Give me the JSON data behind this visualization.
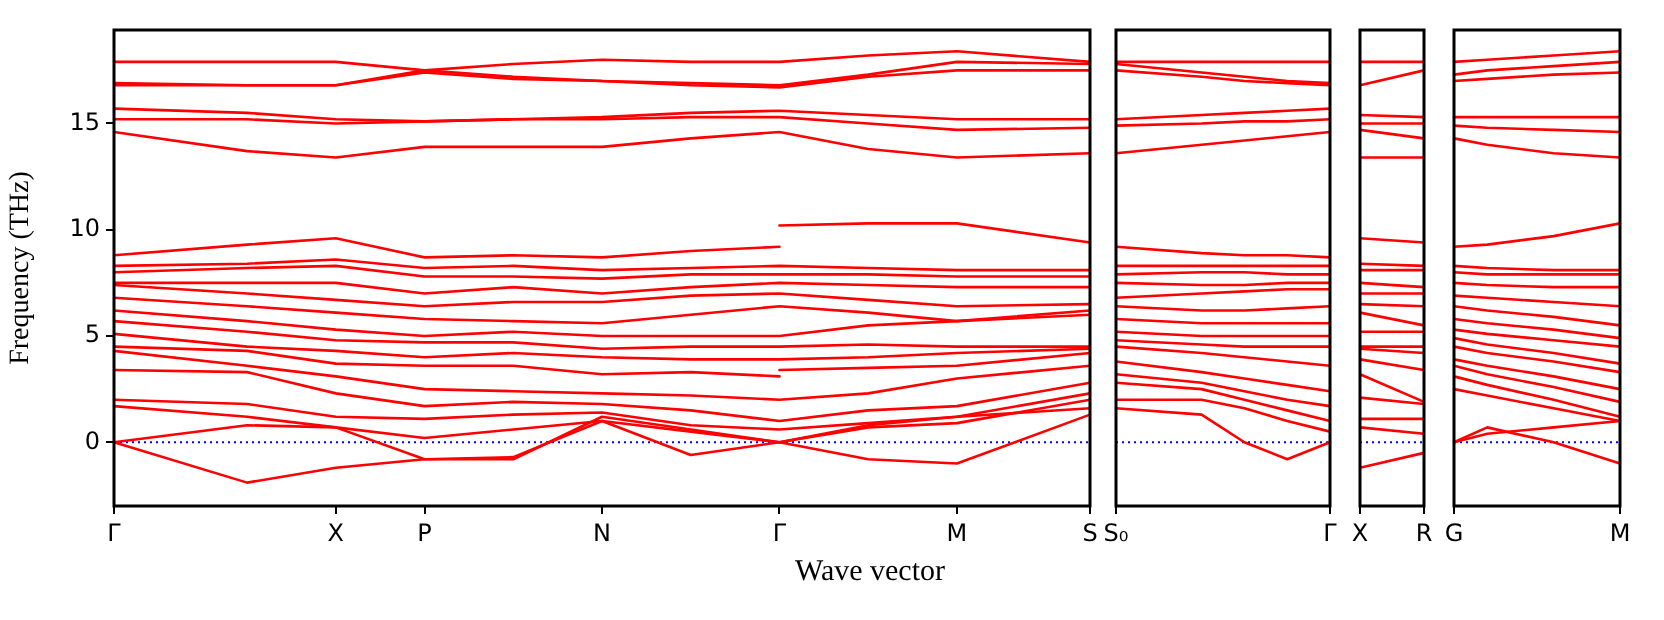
{
  "chart_data": [
    {
      "type": "line",
      "xlabel": "Wave vector",
      "ylabel": "Frequency (THz)",
      "ylim": [
        -3,
        19.4
      ],
      "yticks": [
        0,
        5,
        10,
        15
      ],
      "categories": [
        "Γ",
        null,
        null,
        null,
        null,
        "X",
        null,
        "P",
        null,
        null,
        null,
        "N",
        null,
        null,
        null,
        "Γ",
        null,
        null,
        null,
        "M",
        null,
        null,
        "S"
      ],
      "grid": false,
      "legend": false,
      "marker": "none",
      "line_style": "solid",
      "ref_lines": [
        {
          "axis": "y",
          "value": 0,
          "color": "#0000ff",
          "line_style": "dotted"
        }
      ],
      "series": [
        {
          "color": "#ff0000",
          "values": [
            17.9,
            null,
            null,
            17.9,
            null,
            17.9,
            null,
            17.5,
            null,
            17.8,
            null,
            18.0,
            null,
            17.9,
            null,
            17.9,
            null,
            18.2,
            null,
            18.4,
            null,
            null,
            17.9
          ]
        },
        {
          "color": "#ff0000",
          "values": [
            16.9,
            null,
            null,
            16.8,
            null,
            16.8,
            null,
            17.5,
            null,
            17.2,
            null,
            17.0,
            null,
            16.9,
            null,
            16.8,
            null,
            17.3,
            null,
            17.9,
            null,
            null,
            17.8
          ]
        },
        {
          "color": "#ff0000",
          "values": [
            16.8,
            null,
            null,
            16.8,
            null,
            16.8,
            null,
            17.4,
            null,
            17.1,
            null,
            17.0,
            null,
            16.8,
            null,
            16.7,
            null,
            17.2,
            null,
            17.5,
            null,
            null,
            17.5
          ]
        },
        {
          "color": "#ff0000",
          "values": [
            15.7,
            null,
            null,
            15.5,
            null,
            15.2,
            null,
            15.1,
            null,
            15.2,
            null,
            15.3,
            null,
            15.5,
            null,
            15.6,
            null,
            15.4,
            null,
            15.2,
            null,
            null,
            15.2
          ]
        },
        {
          "color": "#ff0000",
          "values": [
            15.2,
            null,
            null,
            15.2,
            null,
            15.0,
            null,
            15.1,
            null,
            15.2,
            null,
            15.2,
            null,
            15.3,
            null,
            15.3,
            null,
            15.0,
            null,
            14.7,
            null,
            null,
            14.8
          ]
        },
        {
          "color": "#ff0000",
          "values": [
            14.6,
            null,
            null,
            13.7,
            null,
            13.4,
            null,
            13.9,
            null,
            13.9,
            null,
            13.9,
            null,
            14.3,
            null,
            14.6,
            null,
            13.8,
            null,
            13.4,
            null,
            null,
            13.6
          ]
        },
        {
          "color": "#ff0000",
          "values": [
            8.8,
            null,
            null,
            9.3,
            null,
            9.6,
            null,
            8.7,
            null,
            8.8,
            null,
            8.7,
            null,
            9.0,
            null,
            9.2,
            null,
            null,
            null,
            null,
            null,
            null,
            null
          ]
        },
        {
          "color": "#ff0000",
          "values": [
            null,
            null,
            null,
            null,
            null,
            null,
            null,
            null,
            null,
            null,
            null,
            null,
            null,
            null,
            null,
            10.2,
            null,
            10.3,
            null,
            10.3,
            null,
            null,
            9.4
          ]
        },
        {
          "color": "#ff0000",
          "values": [
            8.3,
            null,
            null,
            8.4,
            null,
            8.6,
            null,
            8.2,
            null,
            8.3,
            null,
            8.1,
            null,
            8.2,
            null,
            8.3,
            null,
            8.2,
            null,
            8.1,
            null,
            null,
            8.1
          ]
        },
        {
          "color": "#ff0000",
          "values": [
            8.0,
            null,
            null,
            8.2,
            null,
            8.3,
            null,
            7.8,
            null,
            7.8,
            null,
            7.7,
            null,
            7.9,
            null,
            7.9,
            null,
            7.9,
            null,
            7.8,
            null,
            null,
            7.8
          ]
        },
        {
          "color": "#ff0000",
          "values": [
            7.5,
            null,
            null,
            7.5,
            null,
            7.5,
            null,
            7.0,
            null,
            7.3,
            null,
            7.0,
            null,
            7.3,
            null,
            7.5,
            null,
            7.4,
            null,
            7.3,
            null,
            null,
            7.3
          ]
        },
        {
          "color": "#ff0000",
          "values": [
            7.4,
            null,
            null,
            7.0,
            null,
            6.7,
            null,
            6.4,
            null,
            6.6,
            null,
            6.6,
            null,
            6.9,
            null,
            7.0,
            null,
            6.7,
            null,
            6.4,
            null,
            null,
            6.5
          ]
        },
        {
          "color": "#ff0000",
          "values": [
            6.8,
            null,
            null,
            6.4,
            null,
            6.1,
            null,
            5.8,
            null,
            5.7,
            null,
            5.6,
            null,
            6.0,
            null,
            6.4,
            null,
            6.1,
            null,
            5.7,
            null,
            null,
            6.2
          ]
        },
        {
          "color": "#ff0000",
          "values": [
            6.2,
            null,
            null,
            5.7,
            null,
            5.3,
            null,
            5.0,
            null,
            5.2,
            null,
            5.0,
            null,
            5.0,
            null,
            5.0,
            null,
            5.5,
            null,
            5.7,
            null,
            null,
            6.0
          ]
        },
        {
          "color": "#ff0000",
          "values": [
            5.7,
            null,
            null,
            5.2,
            null,
            4.8,
            null,
            4.7,
            null,
            4.7,
            null,
            4.4,
            null,
            4.5,
            null,
            4.5,
            null,
            4.6,
            null,
            4.5,
            null,
            null,
            4.5
          ]
        },
        {
          "color": "#ff0000",
          "values": [
            5.1,
            null,
            null,
            4.5,
            null,
            4.3,
            null,
            4.0,
            null,
            4.2,
            null,
            4.0,
            null,
            3.9,
            null,
            3.9,
            null,
            4.0,
            null,
            4.2,
            null,
            null,
            4.4
          ]
        },
        {
          "color": "#ff0000",
          "values": [
            4.5,
            null,
            null,
            4.3,
            null,
            3.7,
            null,
            3.6,
            null,
            3.6,
            null,
            3.2,
            null,
            3.3,
            null,
            3.1,
            null,
            null,
            null,
            null,
            null,
            null,
            null
          ]
        },
        {
          "color": "#ff0000",
          "values": [
            null,
            null,
            null,
            null,
            null,
            null,
            null,
            null,
            null,
            null,
            null,
            null,
            null,
            null,
            null,
            3.4,
            null,
            3.5,
            null,
            3.6,
            null,
            null,
            4.2
          ]
        },
        {
          "color": "#ff0000",
          "values": [
            4.3,
            null,
            null,
            3.6,
            null,
            3.1,
            null,
            2.5,
            null,
            2.4,
            null,
            2.3,
            null,
            2.2,
            null,
            2.0,
            null,
            2.3,
            null,
            3.0,
            null,
            null,
            3.6
          ]
        },
        {
          "color": "#ff0000",
          "values": [
            3.4,
            null,
            null,
            3.3,
            null,
            2.3,
            null,
            1.7,
            null,
            1.9,
            null,
            1.8,
            null,
            1.5,
            null,
            1.0,
            null,
            1.5,
            null,
            1.7,
            null,
            null,
            2.8
          ]
        },
        {
          "color": "#ff0000",
          "values": [
            2.0,
            null,
            null,
            1.8,
            null,
            1.2,
            null,
            1.1,
            null,
            1.3,
            null,
            1.4,
            null,
            0.8,
            null,
            0.6,
            null,
            0.9,
            null,
            1.2,
            null,
            null,
            2.3
          ]
        },
        {
          "color": "#ff0000",
          "values": [
            1.7,
            null,
            null,
            1.2,
            null,
            0.7,
            null,
            0.2,
            null,
            0.6,
            null,
            1.0,
            null,
            0.5,
            null,
            0.0,
            null,
            0.7,
            null,
            0.9,
            null,
            null,
            2.0
          ]
        },
        {
          "color": "#ff0000",
          "values": [
            0.0,
            null,
            null,
            0.8,
            null,
            0.7,
            null,
            -0.8,
            null,
            -0.7,
            null,
            1.0,
            null,
            -0.6,
            null,
            0.0,
            null,
            -0.8,
            null,
            -1.0,
            null,
            null,
            1.3
          ]
        },
        {
          "color": "#ff0000",
          "values": [
            0.0,
            null,
            null,
            -1.9,
            null,
            -1.2,
            null,
            -0.8,
            null,
            -0.8,
            null,
            1.2,
            null,
            0.6,
            null,
            0.0,
            null,
            0.8,
            null,
            1.2,
            null,
            null,
            1.6
          ]
        }
      ]
    },
    {
      "type": "line",
      "ylim": [
        -3,
        19.4
      ],
      "yticks": [
        0,
        5,
        10,
        15
      ],
      "tick_labels": "x",
      "categories": [
        "S₀",
        null,
        null,
        null,
        null,
        "Γ"
      ],
      "grid": false,
      "legend": false,
      "marker": "none",
      "line_style": "solid",
      "ref_lines": [
        {
          "axis": "y",
          "value": 0,
          "color": "#0000ff",
          "line_style": "dotted"
        }
      ],
      "series": [
        {
          "color": "#ff0000",
          "values": [
            17.9,
            null,
            17.9,
            17.9,
            17.9,
            17.9
          ]
        },
        {
          "color": "#ff0000",
          "values": [
            17.8,
            null,
            17.4,
            17.2,
            17.0,
            16.9
          ]
        },
        {
          "color": "#ff0000",
          "values": [
            17.5,
            null,
            17.2,
            17.0,
            16.9,
            16.8
          ]
        },
        {
          "color": "#ff0000",
          "values": [
            15.2,
            null,
            15.4,
            15.5,
            15.6,
            15.7
          ]
        },
        {
          "color": "#ff0000",
          "values": [
            14.9,
            null,
            15.0,
            15.1,
            15.1,
            15.2
          ]
        },
        {
          "color": "#ff0000",
          "values": [
            13.6,
            null,
            14.0,
            14.2,
            14.4,
            14.6
          ]
        },
        {
          "color": "#ff0000",
          "values": [
            9.2,
            null,
            8.9,
            8.8,
            8.8,
            8.7
          ]
        },
        {
          "color": "#ff0000",
          "values": [
            8.3,
            null,
            8.3,
            8.3,
            8.3,
            8.3
          ]
        },
        {
          "color": "#ff0000",
          "values": [
            7.9,
            null,
            8.0,
            8.0,
            7.9,
            7.9
          ]
        },
        {
          "color": "#ff0000",
          "values": [
            7.5,
            null,
            7.4,
            7.4,
            7.5,
            7.5
          ]
        },
        {
          "color": "#ff0000",
          "values": [
            6.8,
            null,
            7.0,
            7.1,
            7.2,
            7.2
          ]
        },
        {
          "color": "#ff0000",
          "values": [
            6.4,
            null,
            6.2,
            6.2,
            6.3,
            6.4
          ]
        },
        {
          "color": "#ff0000",
          "values": [
            5.8,
            null,
            5.6,
            5.6,
            5.6,
            5.6
          ]
        },
        {
          "color": "#ff0000",
          "values": [
            5.2,
            null,
            5.0,
            5.0,
            5.0,
            5.0
          ]
        },
        {
          "color": "#ff0000",
          "values": [
            4.8,
            null,
            4.6,
            4.5,
            4.5,
            4.5
          ]
        },
        {
          "color": "#ff0000",
          "values": [
            4.5,
            null,
            4.2,
            4.0,
            3.8,
            3.6
          ]
        },
        {
          "color": "#ff0000",
          "values": [
            3.8,
            null,
            3.3,
            3.0,
            2.7,
            2.4
          ]
        },
        {
          "color": "#ff0000",
          "values": [
            3.2,
            null,
            2.8,
            2.4,
            2.0,
            1.7
          ]
        },
        {
          "color": "#ff0000",
          "values": [
            2.8,
            null,
            2.5,
            2.0,
            1.5,
            1.0
          ]
        },
        {
          "color": "#ff0000",
          "values": [
            2.0,
            null,
            2.0,
            1.6,
            1.0,
            0.5
          ]
        },
        {
          "color": "#ff0000",
          "values": [
            1.6,
            null,
            1.3,
            0.0,
            -0.8,
            0.0
          ]
        }
      ]
    },
    {
      "type": "line",
      "ylim": [
        -3,
        19.4
      ],
      "yticks": [
        0,
        5,
        10,
        15
      ],
      "tick_labels": "x",
      "categories": [
        "X",
        "R"
      ],
      "grid": false,
      "legend": false,
      "marker": "none",
      "line_style": "solid",
      "ref_lines": [
        {
          "axis": "y",
          "value": 0,
          "color": "#0000ff",
          "line_style": "dotted"
        }
      ],
      "series": [
        {
          "color": "#ff0000",
          "values": [
            17.9,
            17.9
          ]
        },
        {
          "color": "#ff0000",
          "values": [
            16.8,
            17.5
          ]
        },
        {
          "color": "#ff0000",
          "values": [
            15.4,
            15.3
          ]
        },
        {
          "color": "#ff0000",
          "values": [
            15.0,
            15.0
          ]
        },
        {
          "color": "#ff0000",
          "values": [
            14.7,
            14.3
          ]
        },
        {
          "color": "#ff0000",
          "values": [
            13.4,
            13.4
          ]
        },
        {
          "color": "#ff0000",
          "values": [
            9.6,
            9.4
          ]
        },
        {
          "color": "#ff0000",
          "values": [
            8.4,
            8.3
          ]
        },
        {
          "color": "#ff0000",
          "values": [
            8.1,
            8.1
          ]
        },
        {
          "color": "#ff0000",
          "values": [
            7.5,
            7.3
          ]
        },
        {
          "color": "#ff0000",
          "values": [
            7.0,
            7.0
          ]
        },
        {
          "color": "#ff0000",
          "values": [
            6.5,
            6.4
          ]
        },
        {
          "color": "#ff0000",
          "values": [
            6.1,
            5.5
          ]
        },
        {
          "color": "#ff0000",
          "values": [
            5.2,
            5.2
          ]
        },
        {
          "color": "#ff0000",
          "values": [
            4.5,
            4.5
          ]
        },
        {
          "color": "#ff0000",
          "values": [
            4.4,
            4.2
          ]
        },
        {
          "color": "#ff0000",
          "values": [
            3.9,
            3.4
          ]
        },
        {
          "color": "#ff0000",
          "values": [
            3.2,
            1.9
          ]
        },
        {
          "color": "#ff0000",
          "values": [
            2.1,
            1.8
          ]
        },
        {
          "color": "#ff0000",
          "values": [
            1.1,
            1.1
          ]
        },
        {
          "color": "#ff0000",
          "values": [
            0.7,
            0.4
          ]
        },
        {
          "color": "#ff0000",
          "values": [
            -1.2,
            -0.5
          ]
        }
      ]
    },
    {
      "type": "line",
      "ylim": [
        -3,
        19.4
      ],
      "yticks": [
        0,
        5,
        10,
        15
      ],
      "tick_labels": "x",
      "categories": [
        "G",
        null,
        null,
        null,
        null,
        "M"
      ],
      "grid": false,
      "legend": false,
      "marker": "none",
      "line_style": "solid",
      "ref_lines": [
        {
          "axis": "y",
          "value": 0,
          "color": "#0000ff",
          "line_style": "dotted"
        }
      ],
      "series": [
        {
          "color": "#ff0000",
          "values": [
            17.9,
            18.0,
            null,
            18.2,
            null,
            18.4
          ]
        },
        {
          "color": "#ff0000",
          "values": [
            17.3,
            17.5,
            null,
            17.7,
            null,
            17.9
          ]
        },
        {
          "color": "#ff0000",
          "values": [
            17.0,
            17.1,
            null,
            17.3,
            null,
            17.4
          ]
        },
        {
          "color": "#ff0000",
          "values": [
            15.3,
            15.3,
            null,
            15.3,
            null,
            15.3
          ]
        },
        {
          "color": "#ff0000",
          "values": [
            14.9,
            14.8,
            null,
            14.7,
            null,
            14.6
          ]
        },
        {
          "color": "#ff0000",
          "values": [
            14.3,
            14.0,
            null,
            13.6,
            null,
            13.4
          ]
        },
        {
          "color": "#ff0000",
          "values": [
            9.2,
            9.3,
            null,
            9.7,
            null,
            10.3
          ]
        },
        {
          "color": "#ff0000",
          "values": [
            8.3,
            8.2,
            null,
            8.1,
            null,
            8.1
          ]
        },
        {
          "color": "#ff0000",
          "values": [
            8.0,
            7.9,
            null,
            7.9,
            null,
            7.9
          ]
        },
        {
          "color": "#ff0000",
          "values": [
            7.5,
            7.4,
            null,
            7.3,
            null,
            7.3
          ]
        },
        {
          "color": "#ff0000",
          "values": [
            6.9,
            6.8,
            null,
            6.6,
            null,
            6.4
          ]
        },
        {
          "color": "#ff0000",
          "values": [
            6.4,
            6.2,
            null,
            5.9,
            null,
            5.5
          ]
        },
        {
          "color": "#ff0000",
          "values": [
            5.8,
            5.6,
            null,
            5.3,
            null,
            4.9
          ]
        },
        {
          "color": "#ff0000",
          "values": [
            5.3,
            5.1,
            null,
            4.8,
            null,
            4.5
          ]
        },
        {
          "color": "#ff0000",
          "values": [
            4.9,
            4.6,
            null,
            4.2,
            null,
            3.7
          ]
        },
        {
          "color": "#ff0000",
          "values": [
            4.5,
            4.2,
            null,
            3.8,
            null,
            3.3
          ]
        },
        {
          "color": "#ff0000",
          "values": [
            3.9,
            3.6,
            null,
            3.1,
            null,
            2.5
          ]
        },
        {
          "color": "#ff0000",
          "values": [
            3.6,
            3.2,
            null,
            2.6,
            null,
            1.9
          ]
        },
        {
          "color": "#ff0000",
          "values": [
            3.1,
            2.7,
            null,
            2.0,
            null,
            1.2
          ]
        },
        {
          "color": "#ff0000",
          "values": [
            2.5,
            2.2,
            null,
            1.6,
            null,
            1.0
          ]
        },
        {
          "color": "#ff0000",
          "values": [
            0.0,
            0.7,
            null,
            0.0,
            null,
            -1.0
          ]
        },
        {
          "color": "#ff0000",
          "values": [
            0.0,
            0.4,
            null,
            0.7,
            null,
            1.0
          ]
        }
      ]
    }
  ]
}
